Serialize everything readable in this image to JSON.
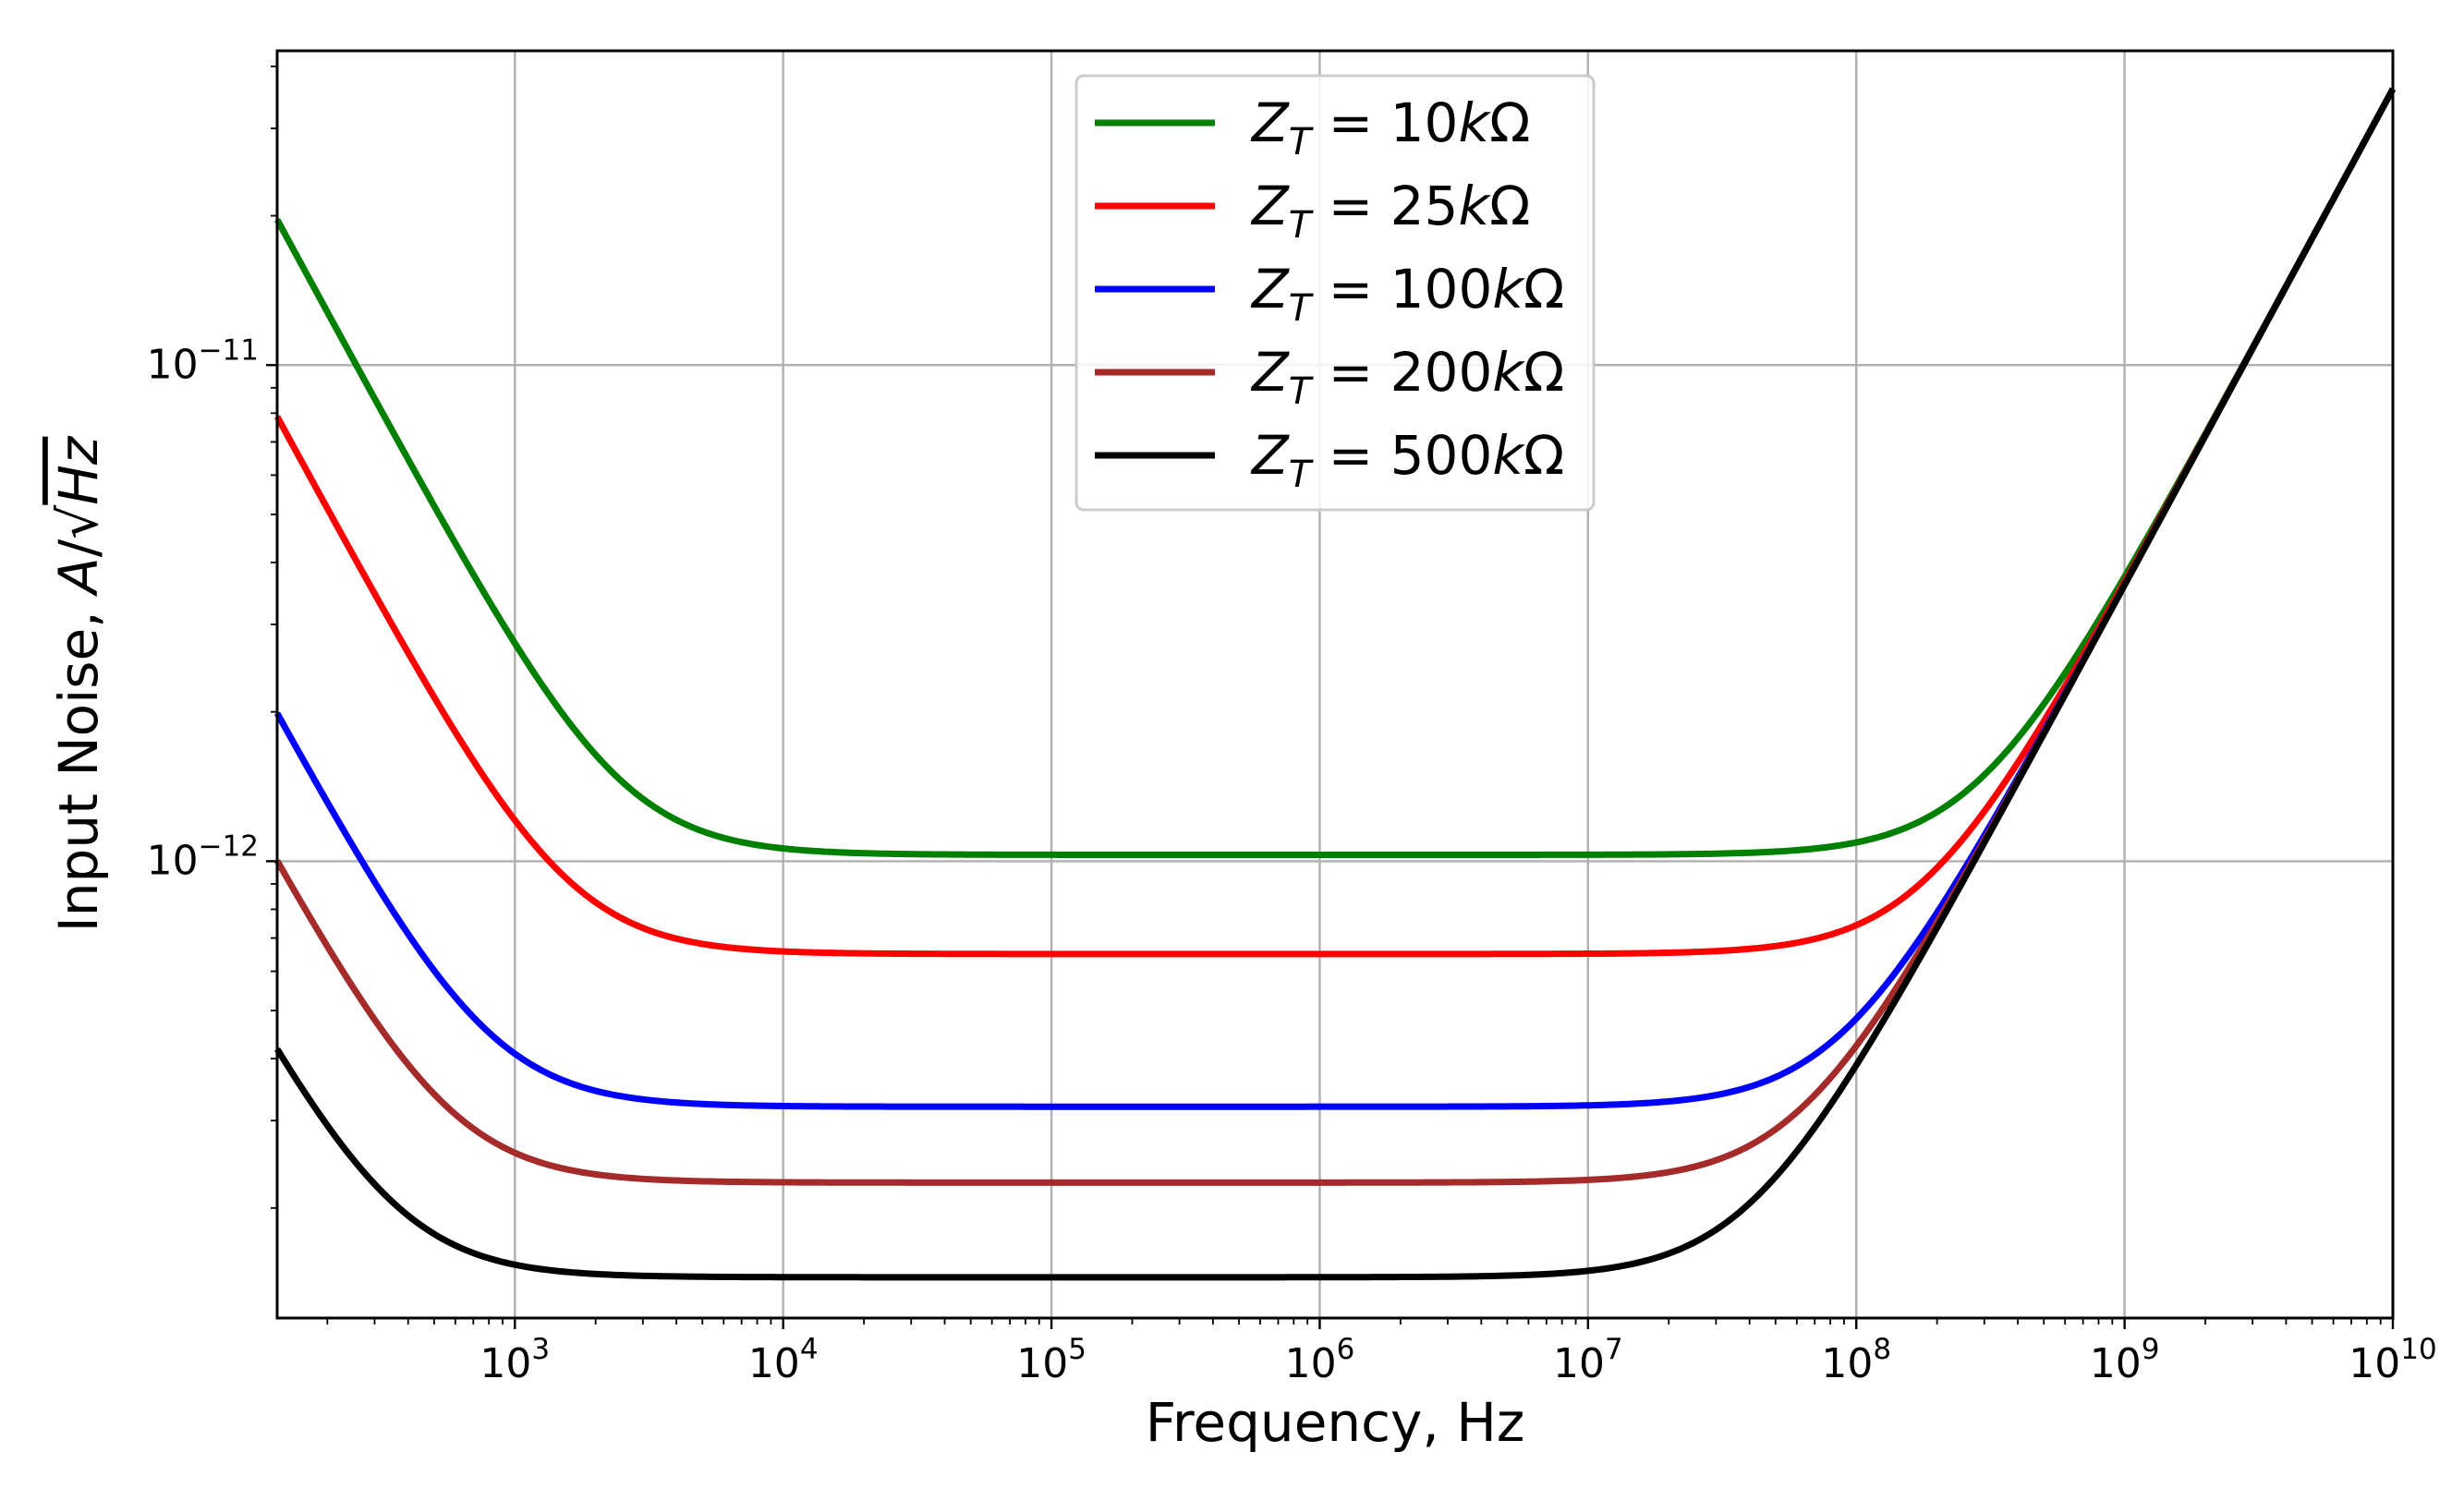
{
  "chart_data": {
    "type": "line",
    "title": "",
    "xlabel": "Frequency, Hz",
    "ylabel": "Input Noise, ",
    "ylabel_unit": {
      "a": "A",
      "slash": "/",
      "sqrt": "√",
      "hz": "Hz"
    },
    "xscale": "log",
    "yscale": "log",
    "xlim": [
      130,
      10000000000
    ],
    "ylim": [
      1.2e-13,
      4.3e-11
    ],
    "grid": true,
    "legend_position": "top-center",
    "x_ticks": [
      {
        "base": "10",
        "exp": "3",
        "value": 1000
      },
      {
        "base": "10",
        "exp": "4",
        "value": 10000
      },
      {
        "base": "10",
        "exp": "5",
        "value": 100000
      },
      {
        "base": "10",
        "exp": "6",
        "value": 1000000
      },
      {
        "base": "10",
        "exp": "7",
        "value": 10000000
      },
      {
        "base": "10",
        "exp": "8",
        "value": 100000000
      },
      {
        "base": "10",
        "exp": "9",
        "value": 1000000000
      },
      {
        "base": "10",
        "exp": "10",
        "value": 10000000000
      }
    ],
    "y_ticks": [
      {
        "base": "10",
        "exp": "−12",
        "value": 1e-12
      },
      {
        "base": "10",
        "exp": "−11",
        "value": 1e-11
      }
    ],
    "model": "noise(f) = sqrt(floor^2 + (k_low/f)^2 + (k_high*f)^2)",
    "series": [
      {
        "name": "Z_T = 10kΩ",
        "label_sym": "Z",
        "label_sub": "T",
        "label_eq": " = ",
        "label_val": "10",
        "label_k": "k",
        "label_unit": "Ω",
        "color": "#008000",
        "floor": 1.03e-12,
        "k_low": 2.55e-09,
        "k_high": 3.6e-21
      },
      {
        "name": "Z_T = 25kΩ",
        "label_sym": "Z",
        "label_sub": "T",
        "label_eq": " = ",
        "label_val": "25",
        "label_k": "k",
        "label_unit": "Ω",
        "color": "#ff0000",
        "floor": 6.5e-13,
        "k_low": 1.02e-09,
        "k_high": 3.6e-21
      },
      {
        "name": "Z_T = 100kΩ",
        "label_sym": "Z",
        "label_sub": "T",
        "label_eq": " = ",
        "label_val": "100",
        "label_k": "k",
        "label_unit": "Ω",
        "color": "#0000ff",
        "floor": 3.2e-13,
        "k_low": 2.55e-10,
        "k_high": 3.6e-21
      },
      {
        "name": "Z_T = 200kΩ",
        "label_sym": "Z",
        "label_sub": "T",
        "label_eq": " = ",
        "label_val": "200",
        "label_k": "k",
        "label_unit": "Ω",
        "color": "#a52a2a",
        "floor": 2.25e-13,
        "k_low": 1.27e-10,
        "k_high": 3.6e-21
      },
      {
        "name": "Z_T = 500kΩ",
        "label_sym": "Z",
        "label_sub": "T",
        "label_eq": " = ",
        "label_val": "500",
        "label_k": "k",
        "label_unit": "Ω",
        "color": "#000000",
        "floor": 1.45e-13,
        "k_low": 5.1e-11,
        "k_high": 3.6e-21
      }
    ]
  }
}
